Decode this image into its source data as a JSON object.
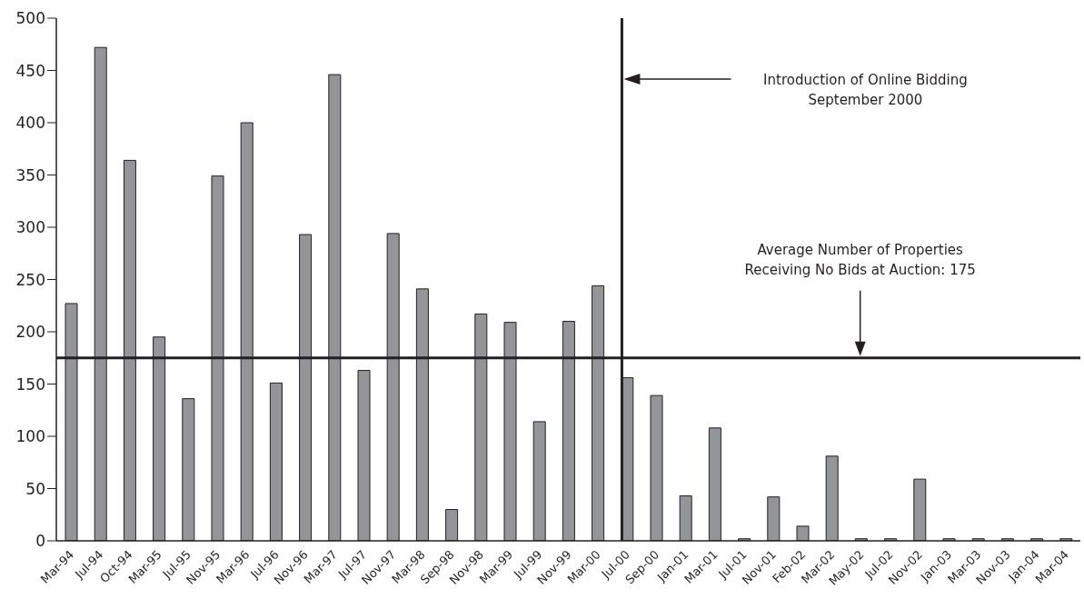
{
  "chart_data": {
    "type": "bar",
    "categories": [
      "Mar-94",
      "Jul-94",
      "Oct-94",
      "Mar-95",
      "Jul-95",
      "Nov-95",
      "Mar-96",
      "Jul-96",
      "Nov-96",
      "Mar-97",
      "Jul-97",
      "Nov-97",
      "Mar-98",
      "Sep-98",
      "Nov-98",
      "Mar-99",
      "Jul-99",
      "Nov-99",
      "Mar-00",
      "Jul-00",
      "Sep-00",
      "Jan-01",
      "Mar-01",
      "Jul-01",
      "Nov-01",
      "Feb-02",
      "Mar-02",
      "May-02",
      "Jul-02",
      "Nov-02",
      "Jan-03",
      "Mar-03",
      "Nov-03",
      "Jan-04",
      "Mar-04"
    ],
    "values": [
      227,
      472,
      364,
      195,
      136,
      349,
      400,
      151,
      293,
      446,
      163,
      294,
      241,
      30,
      217,
      209,
      114,
      210,
      244,
      156,
      139,
      43,
      108,
      2,
      42,
      14,
      81,
      2,
      2,
      59,
      2,
      2,
      2,
      2,
      2
    ],
    "color": "#939598",
    "ylim": [
      0,
      500
    ],
    "yticks": [
      0,
      50,
      100,
      150,
      200,
      250,
      300,
      350,
      400,
      450,
      500
    ],
    "grid": false,
    "legend": false,
    "ref_lines": [
      {
        "axis": "x",
        "value": "Jul-00",
        "color": "#231f20"
      },
      {
        "axis": "y",
        "value": 175,
        "color": "#231f20"
      }
    ],
    "annotations": [
      "Introduction of Online Bidding\nSeptember 2000",
      "Average Number of Properties\nReceiving No Bids at Auction: 175"
    ]
  }
}
